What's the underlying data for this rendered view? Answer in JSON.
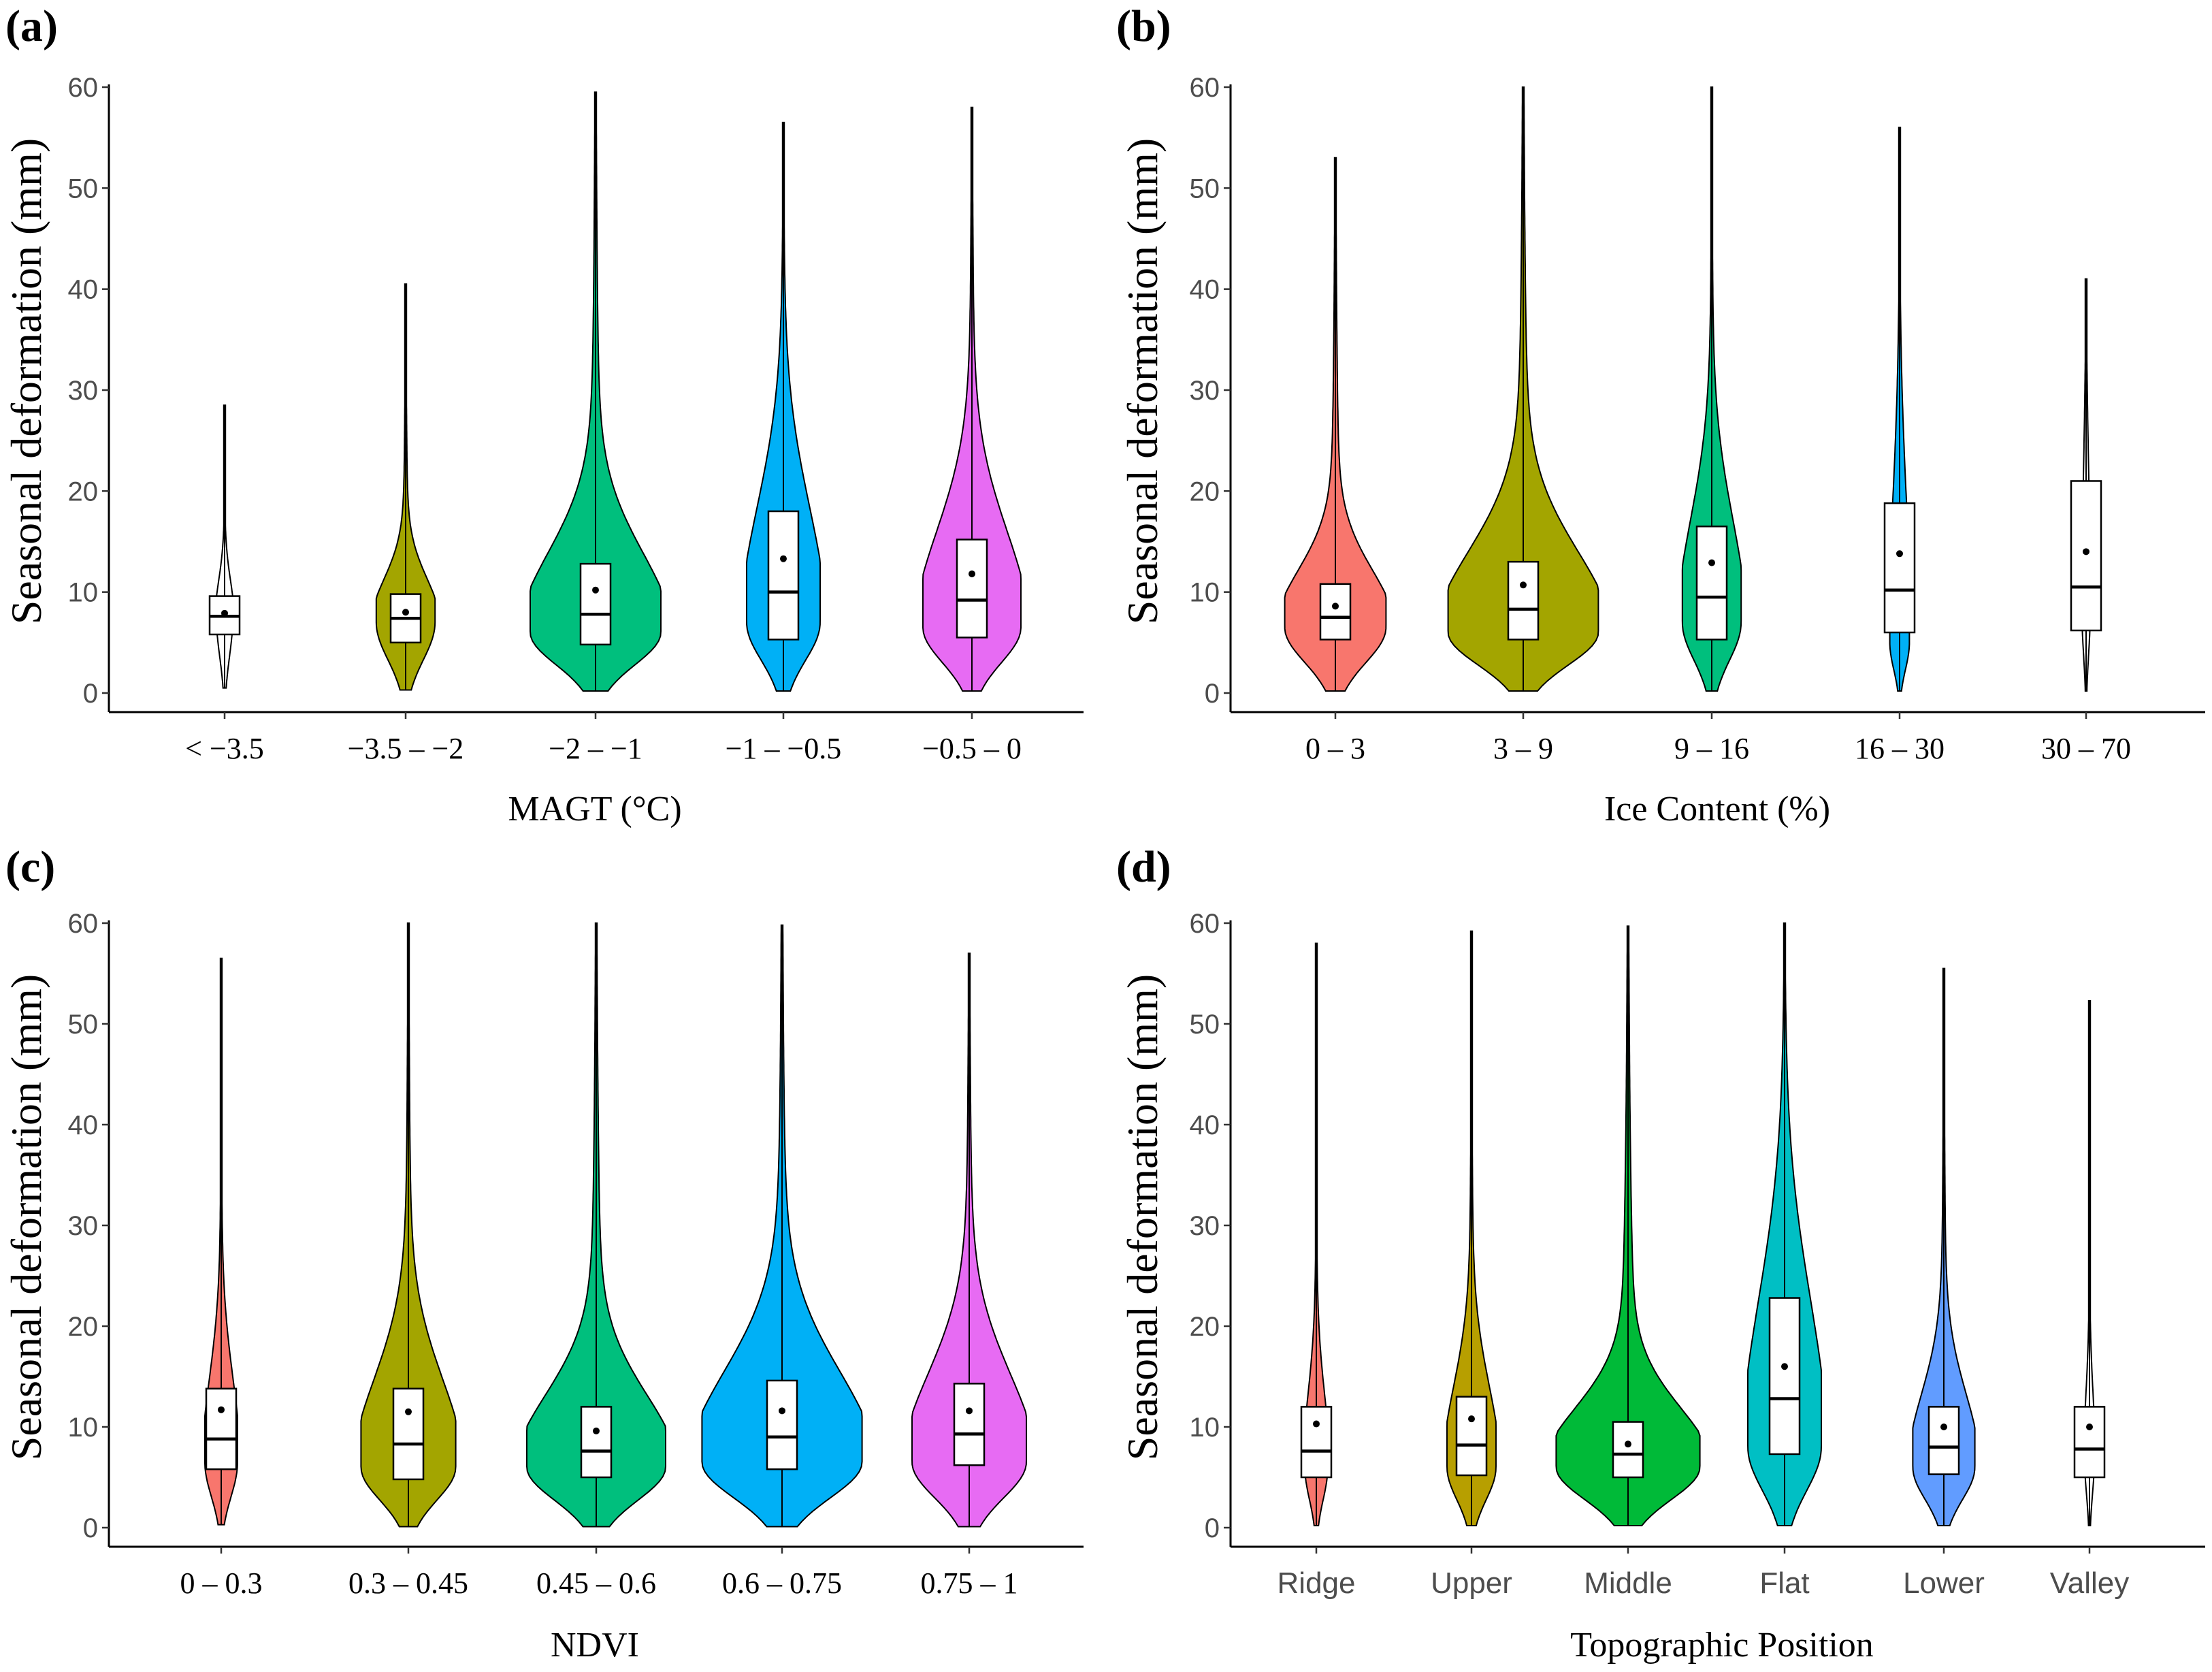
{
  "chart_data": [
    {
      "type": "violin",
      "panel_label": "(a)",
      "xlabel": "MAGT (°C)",
      "ylabel": "Seasonal deformation (mm)",
      "ylim": [
        0,
        60
      ],
      "yticks": [
        0,
        10,
        20,
        30,
        40,
        50,
        60
      ],
      "categories": [
        "< −3.5",
        "−3.5 – −2",
        "−2 – −1",
        "−1 – −0.5",
        "−0.5 – 0"
      ],
      "groups": [
        {
          "color": "#ffffff",
          "min": 0.5,
          "max": 28.5,
          "q1": 5.8,
          "median": 7.6,
          "q3": 9.6,
          "mean": 7.9,
          "peak": 7.5,
          "width": 0.1
        },
        {
          "color": "#a3a500",
          "min": 0.3,
          "max": 40.5,
          "q1": 5.0,
          "median": 7.4,
          "q3": 9.8,
          "mean": 8.0,
          "peak": 7.0,
          "width": 0.36
        },
        {
          "color": "#00bf7d",
          "min": 0.2,
          "max": 59.5,
          "q1": 4.8,
          "median": 7.8,
          "q3": 12.8,
          "mean": 10.2,
          "peak": 6.0,
          "width": 0.8
        },
        {
          "color": "#00b0f6",
          "min": 0.2,
          "max": 56.5,
          "q1": 5.3,
          "median": 10.0,
          "q3": 18.0,
          "mean": 13.3,
          "peak": 7.0,
          "width": 0.45
        },
        {
          "color": "#e76bf3",
          "min": 0.2,
          "max": 58.0,
          "q1": 5.5,
          "median": 9.2,
          "q3": 15.2,
          "mean": 11.8,
          "peak": 6.5,
          "width": 0.6
        }
      ]
    },
    {
      "type": "violin",
      "panel_label": "(b)",
      "xlabel": "Ice Content (%)",
      "ylabel": "Seasonal deformation (mm)",
      "ylim": [
        0,
        60
      ],
      "yticks": [
        0,
        10,
        20,
        30,
        40,
        50,
        60
      ],
      "categories": [
        "0 – 3",
        "3 – 9",
        "9 – 16",
        "16 – 30",
        "30 – 70"
      ],
      "groups": [
        {
          "color": "#f8766d",
          "min": 0.2,
          "max": 53.0,
          "q1": 5.3,
          "median": 7.5,
          "q3": 10.8,
          "mean": 8.6,
          "peak": 6.5,
          "width": 0.62
        },
        {
          "color": "#a3a500",
          "min": 0.2,
          "max": 60.0,
          "q1": 5.3,
          "median": 8.3,
          "q3": 13.0,
          "mean": 10.7,
          "peak": 6.0,
          "width": 0.92
        },
        {
          "color": "#00bf7d",
          "min": 0.2,
          "max": 60.0,
          "q1": 5.3,
          "median": 9.5,
          "q3": 16.5,
          "mean": 12.9,
          "peak": 7.0,
          "width": 0.36
        },
        {
          "color": "#00b0f6",
          "min": 0.2,
          "max": 56.0,
          "q1": 6.0,
          "median": 10.2,
          "q3": 18.8,
          "mean": 13.8,
          "peak": 5.0,
          "width": 0.12
        },
        {
          "color": "#ffffff",
          "min": 0.2,
          "max": 41.0,
          "q1": 6.2,
          "median": 10.5,
          "q3": 21.0,
          "mean": 14.0,
          "peak": 8.0,
          "width": 0.05
        }
      ]
    },
    {
      "type": "violin",
      "panel_label": "(c)",
      "xlabel": "NDVI",
      "ylabel": "Seasonal deformation (mm)",
      "ylim": [
        0,
        60
      ],
      "yticks": [
        0,
        10,
        20,
        30,
        40,
        50,
        60
      ],
      "categories": [
        "0 – 0.3",
        "0.3 – 0.45",
        "0.45 – 0.6",
        "0.6 – 0.75",
        "0.75 – 1"
      ],
      "groups": [
        {
          "color": "#f8766d",
          "min": 0.3,
          "max": 56.5,
          "q1": 5.8,
          "median": 8.8,
          "q3": 13.8,
          "mean": 11.7,
          "peak": 6.5,
          "width": 0.2
        },
        {
          "color": "#a3a500",
          "min": 0.1,
          "max": 60.0,
          "q1": 4.8,
          "median": 8.3,
          "q3": 13.8,
          "mean": 11.5,
          "peak": 6.0,
          "width": 0.58
        },
        {
          "color": "#00bf7d",
          "min": 0.1,
          "max": 60.0,
          "q1": 5.0,
          "median": 7.6,
          "q3": 12.0,
          "mean": 9.6,
          "peak": 6.0,
          "width": 0.85
        },
        {
          "color": "#00b0f6",
          "min": 0.1,
          "max": 59.8,
          "q1": 5.8,
          "median": 9.0,
          "q3": 14.6,
          "mean": 11.6,
          "peak": 6.5,
          "width": 0.98
        },
        {
          "color": "#e76bf3",
          "min": 0.1,
          "max": 57.0,
          "q1": 6.2,
          "median": 9.3,
          "q3": 14.3,
          "mean": 11.6,
          "peak": 6.5,
          "width": 0.7
        }
      ]
    },
    {
      "type": "violin",
      "panel_label": "(d)",
      "xlabel": "Topographic Position",
      "ylabel": "Seasonal deformation (mm)",
      "ylim": [
        0,
        60
      ],
      "yticks": [
        0,
        10,
        20,
        30,
        40,
        50,
        60
      ],
      "categories": [
        "Ridge",
        "Upper",
        "Middle",
        "Flat",
        "Lower",
        "Valley"
      ],
      "groups": [
        {
          "color": "#f8766d",
          "min": 0.2,
          "max": 58.0,
          "q1": 5.0,
          "median": 7.6,
          "q3": 12.0,
          "mean": 10.3,
          "peak": 6.0,
          "width": 0.14
        },
        {
          "color": "#b79f00",
          "min": 0.2,
          "max": 59.2,
          "q1": 5.2,
          "median": 8.2,
          "q3": 13.0,
          "mean": 10.8,
          "peak": 6.0,
          "width": 0.3
        },
        {
          "color": "#00ba38",
          "min": 0.2,
          "max": 59.7,
          "q1": 5.0,
          "median": 7.3,
          "q3": 10.5,
          "mean": 8.3,
          "peak": 6.0,
          "width": 0.88
        },
        {
          "color": "#00bfc4",
          "min": 0.2,
          "max": 60.0,
          "q1": 7.3,
          "median": 12.8,
          "q3": 22.8,
          "mean": 16.0,
          "peak": 8.0,
          "width": 0.45
        },
        {
          "color": "#619cff",
          "min": 0.2,
          "max": 55.5,
          "q1": 5.3,
          "median": 8.0,
          "q3": 12.0,
          "mean": 10.0,
          "peak": 6.0,
          "width": 0.38
        },
        {
          "color": "#ffffff",
          "min": 0.2,
          "max": 52.3,
          "q1": 5.0,
          "median": 7.8,
          "q3": 12.0,
          "mean": 10.0,
          "peak": 7.0,
          "width": 0.06
        }
      ]
    }
  ]
}
